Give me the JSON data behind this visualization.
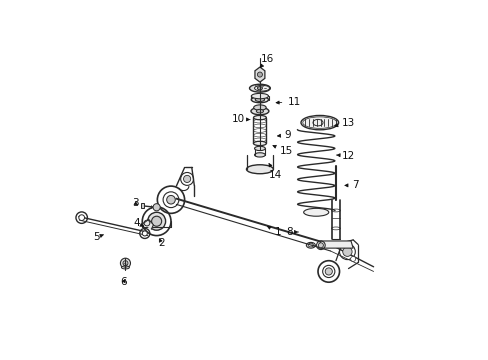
{
  "background_color": "#ffffff",
  "figsize": [
    4.89,
    3.6
  ],
  "dpi": 100,
  "line_color": "#2a2a2a",
  "label_color": "#111111",
  "label_fontsize": 7.5,
  "labels": [
    [
      1,
      0.595,
      0.355,
      0.555,
      0.375
    ],
    [
      2,
      0.268,
      0.325,
      0.258,
      0.345
    ],
    [
      3,
      0.195,
      0.435,
      0.21,
      0.425
    ],
    [
      4,
      0.2,
      0.38,
      0.22,
      0.37
    ],
    [
      5,
      0.088,
      0.34,
      0.108,
      0.348
    ],
    [
      6,
      0.163,
      0.215,
      0.172,
      0.232
    ],
    [
      7,
      0.81,
      0.485,
      0.77,
      0.485
    ],
    [
      8,
      0.625,
      0.355,
      0.65,
      0.355
    ],
    [
      9,
      0.62,
      0.625,
      0.582,
      0.622
    ],
    [
      10,
      0.482,
      0.67,
      0.524,
      0.668
    ],
    [
      11,
      0.638,
      0.718,
      0.578,
      0.715
    ],
    [
      12,
      0.79,
      0.568,
      0.748,
      0.57
    ],
    [
      13,
      0.79,
      0.66,
      0.742,
      0.648
    ],
    [
      14,
      0.587,
      0.515,
      0.567,
      0.548
    ],
    [
      15,
      0.618,
      0.58,
      0.57,
      0.6
    ],
    [
      16,
      0.565,
      0.838,
      0.543,
      0.812
    ]
  ]
}
